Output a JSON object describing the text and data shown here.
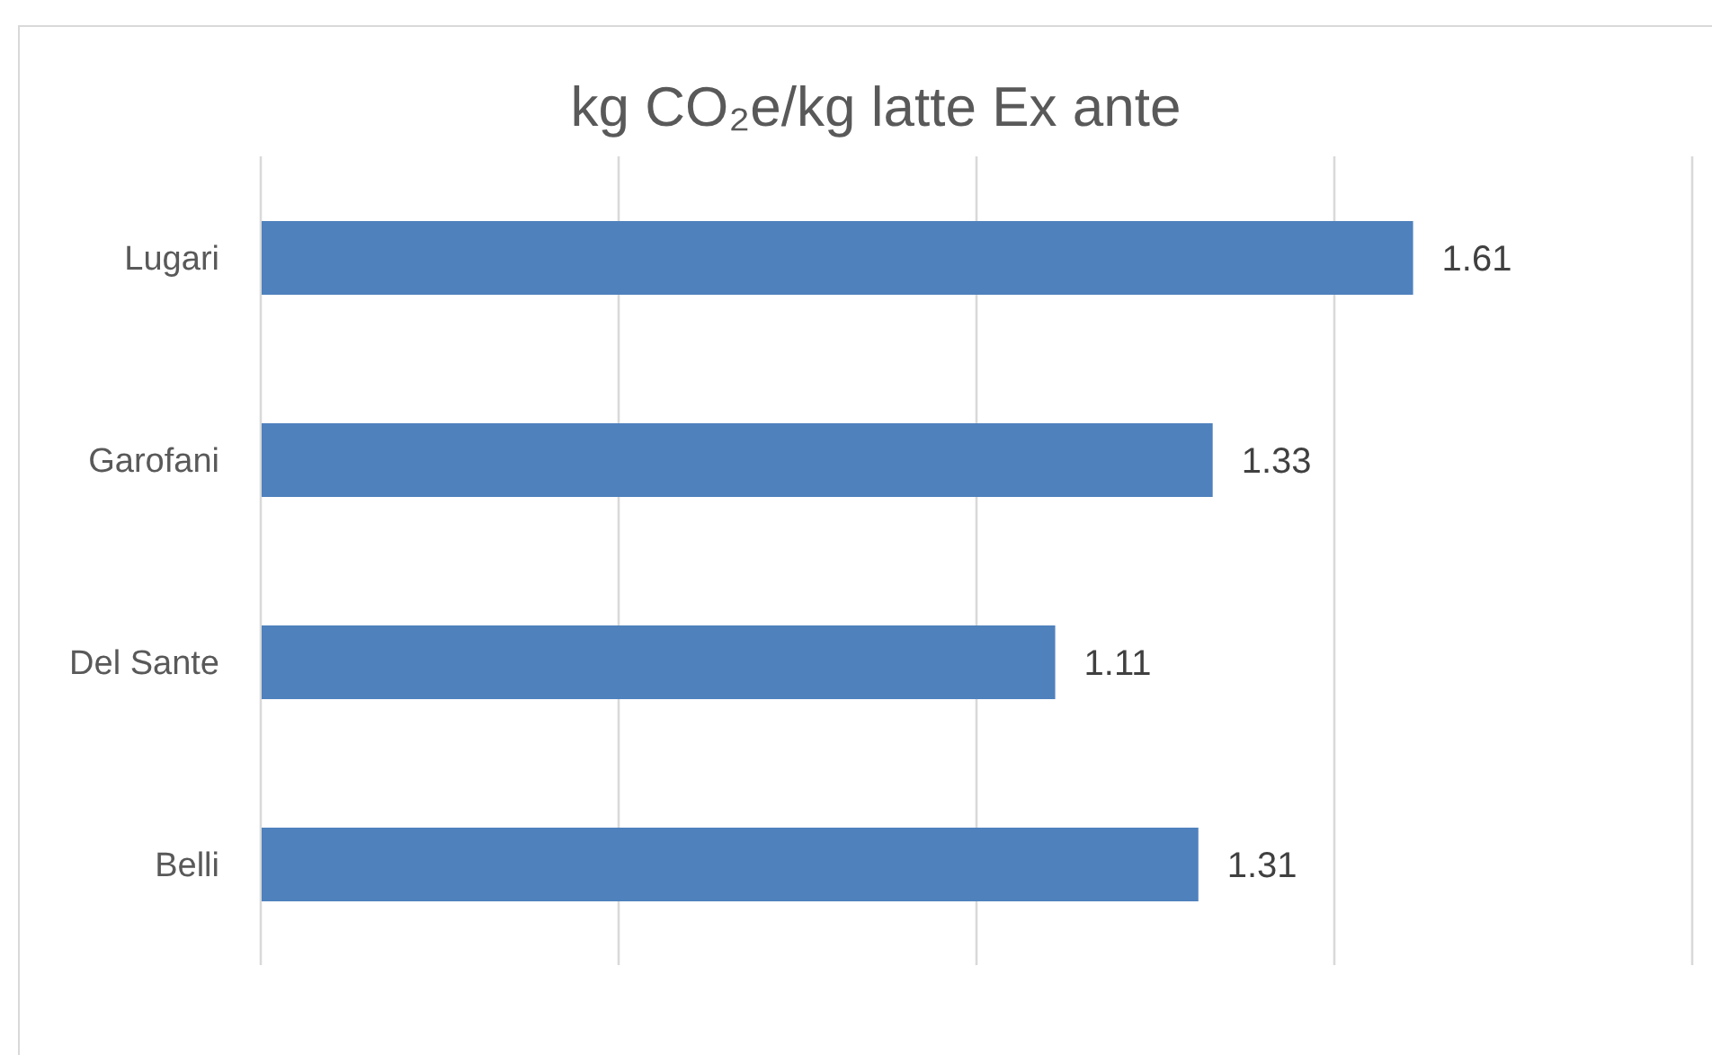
{
  "chart_data": {
    "type": "bar",
    "orientation": "horizontal",
    "title": "kg CO₂e/kg latte Ex ante",
    "categories": [
      "Lugari",
      "Garofani",
      "Del Sante",
      "Belli"
    ],
    "values": [
      1.61,
      1.33,
      1.11,
      1.31
    ],
    "color": "#4f81bd",
    "xlim": [
      0,
      2
    ],
    "xticks": [
      {
        "value": 0,
        "label": null
      },
      {
        "value": 0.5,
        "label": null
      },
      {
        "value": 1,
        "label": null
      },
      {
        "value": 1.5,
        "label": null
      },
      {
        "value": 2,
        "label": null
      }
    ],
    "grid": "x",
    "tick_labels": "y",
    "data_labels": true
  }
}
